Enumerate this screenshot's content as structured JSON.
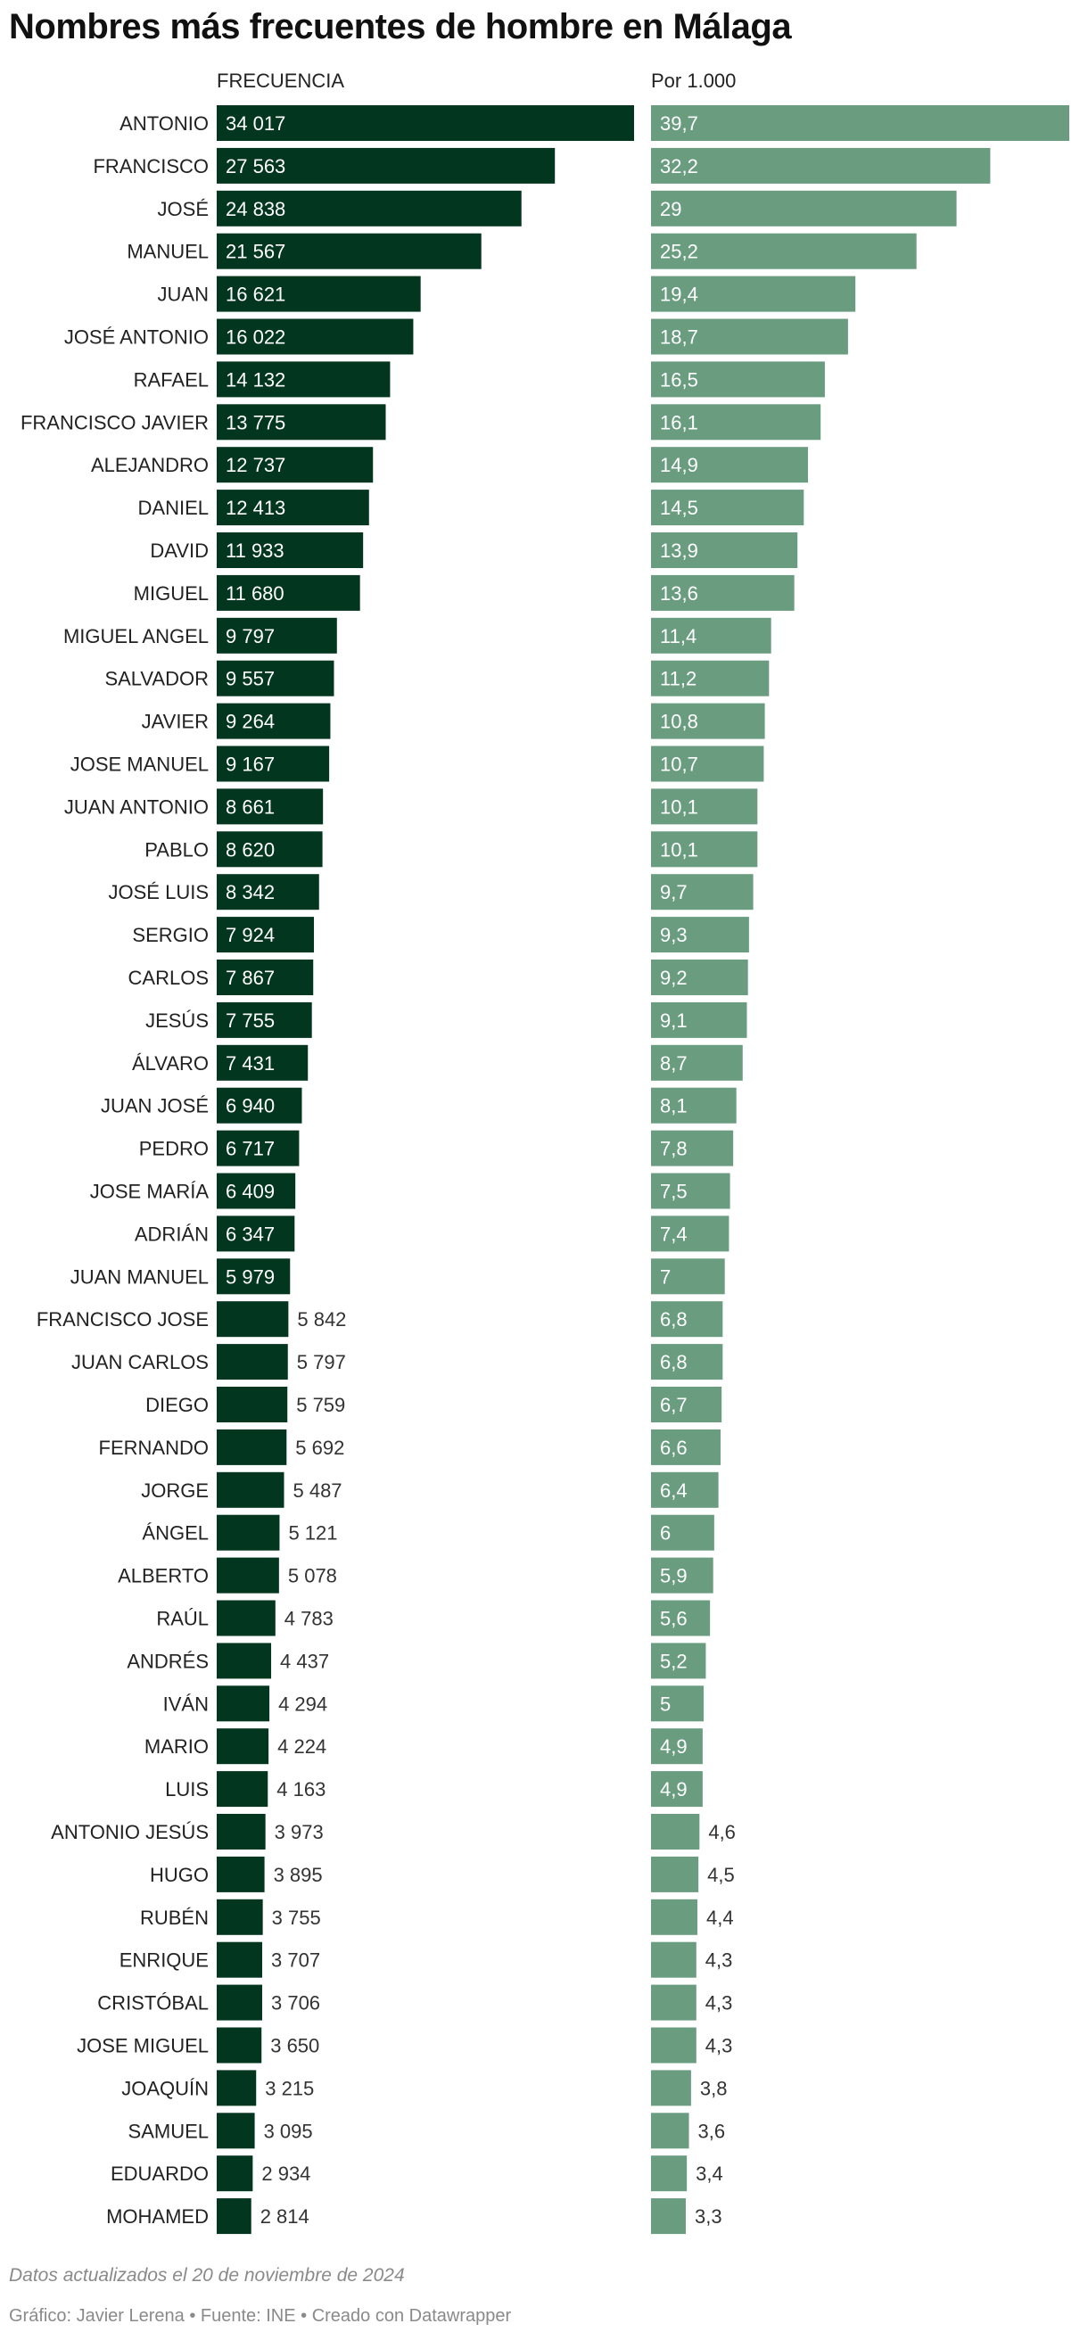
{
  "chart_data": {
    "type": "bar",
    "title": "Nombres más frecuentes de hombre en Málaga",
    "colors": {
      "frecuencia": "#03361f",
      "por_mil": "#6a9c80",
      "label_dark": "#333333",
      "label_light": "#ffffff"
    },
    "categories": [
      "ANTONIO",
      "FRANCISCO",
      "JOSÉ",
      "MANUEL",
      "JUAN",
      "JOSÉ ANTONIO",
      "RAFAEL",
      "FRANCISCO JAVIER",
      "ALEJANDRO",
      "DANIEL",
      "DAVID",
      "MIGUEL",
      "MIGUEL ANGEL",
      "SALVADOR",
      "JAVIER",
      "JOSE MANUEL",
      "JUAN ANTONIO",
      "PABLO",
      "JOSÉ LUIS",
      "SERGIO",
      "CARLOS",
      "JESÚS",
      "ÁLVARO",
      "JUAN JOSÉ",
      "PEDRO",
      "JOSE MARÍA",
      "ADRIÁN",
      "JUAN MANUEL",
      "FRANCISCO JOSE",
      "JUAN CARLOS",
      "DIEGO",
      "FERNANDO",
      "JORGE",
      "ÁNGEL",
      "ALBERTO",
      "RAÚL",
      "ANDRÉS",
      "IVÁN",
      "MARIO",
      "LUIS",
      "ANTONIO JESÚS",
      "HUGO",
      "RUBÉN",
      "ENRIQUE",
      "CRISTÓBAL",
      "JOSE MIGUEL",
      "JOAQUÍN",
      "SAMUEL",
      "EDUARDO",
      "MOHAMED"
    ],
    "series": [
      {
        "name": "FRECUENCIA",
        "max": 34017,
        "values": [
          34017,
          27563,
          24838,
          21567,
          16621,
          16022,
          14132,
          13775,
          12737,
          12413,
          11933,
          11680,
          9797,
          9557,
          9264,
          9167,
          8661,
          8620,
          8342,
          7924,
          7867,
          7755,
          7431,
          6940,
          6717,
          6409,
          6347,
          5979,
          5842,
          5797,
          5759,
          5692,
          5487,
          5121,
          5078,
          4783,
          4437,
          4294,
          4224,
          4163,
          3973,
          3895,
          3755,
          3707,
          3706,
          3650,
          3215,
          3095,
          2934,
          2814
        ],
        "labels": [
          "34 017",
          "27 563",
          "24 838",
          "21 567",
          "16 621",
          "16 022",
          "14 132",
          "13 775",
          "12 737",
          "12 413",
          "11 933",
          "11 680",
          "9 797",
          "9 557",
          "9 264",
          "9 167",
          "8 661",
          "8 620",
          "8 342",
          "7 924",
          "7 867",
          "7 755",
          "7 431",
          "6 940",
          "6 717",
          "6 409",
          "6 347",
          "5 979",
          "5 842",
          "5 797",
          "5 759",
          "5 692",
          "5 487",
          "5 121",
          "5 078",
          "4 783",
          "4 437",
          "4 294",
          "4 224",
          "4 163",
          "3 973",
          "3 895",
          "3 755",
          "3 707",
          "3 706",
          "3 650",
          "3 215",
          "3 095",
          "2 934",
          "2 814"
        ]
      },
      {
        "name": "Por 1.000",
        "max": 39.7,
        "values": [
          39.7,
          32.2,
          29,
          25.2,
          19.4,
          18.7,
          16.5,
          16.1,
          14.9,
          14.5,
          13.9,
          13.6,
          11.4,
          11.2,
          10.8,
          10.7,
          10.1,
          10.1,
          9.7,
          9.3,
          9.2,
          9.1,
          8.7,
          8.1,
          7.8,
          7.5,
          7.4,
          7,
          6.8,
          6.8,
          6.7,
          6.6,
          6.4,
          6,
          5.9,
          5.6,
          5.2,
          5,
          4.9,
          4.9,
          4.6,
          4.5,
          4.4,
          4.3,
          4.3,
          4.3,
          3.8,
          3.6,
          3.4,
          3.3
        ],
        "labels": [
          "39,7",
          "32,2",
          "29",
          "25,2",
          "19,4",
          "18,7",
          "16,5",
          "16,1",
          "14,9",
          "14,5",
          "13,9",
          "13,6",
          "11,4",
          "11,2",
          "10,8",
          "10,7",
          "10,1",
          "10,1",
          "9,7",
          "9,3",
          "9,2",
          "9,1",
          "8,7",
          "8,1",
          "7,8",
          "7,5",
          "7,4",
          "7",
          "6,8",
          "6,8",
          "6,7",
          "6,6",
          "6,4",
          "6",
          "5,9",
          "5,6",
          "5,2",
          "5",
          "4,9",
          "4,9",
          "4,6",
          "4,5",
          "4,4",
          "4,3",
          "4,3",
          "4,3",
          "3,8",
          "3,6",
          "3,4",
          "3,3"
        ]
      }
    ],
    "notes": "Datos actualizados el 20 de noviembre de 2024",
    "byline": "Gráfico: Javier Lerena • Fuente: INE • Creado con Datawrapper"
  }
}
